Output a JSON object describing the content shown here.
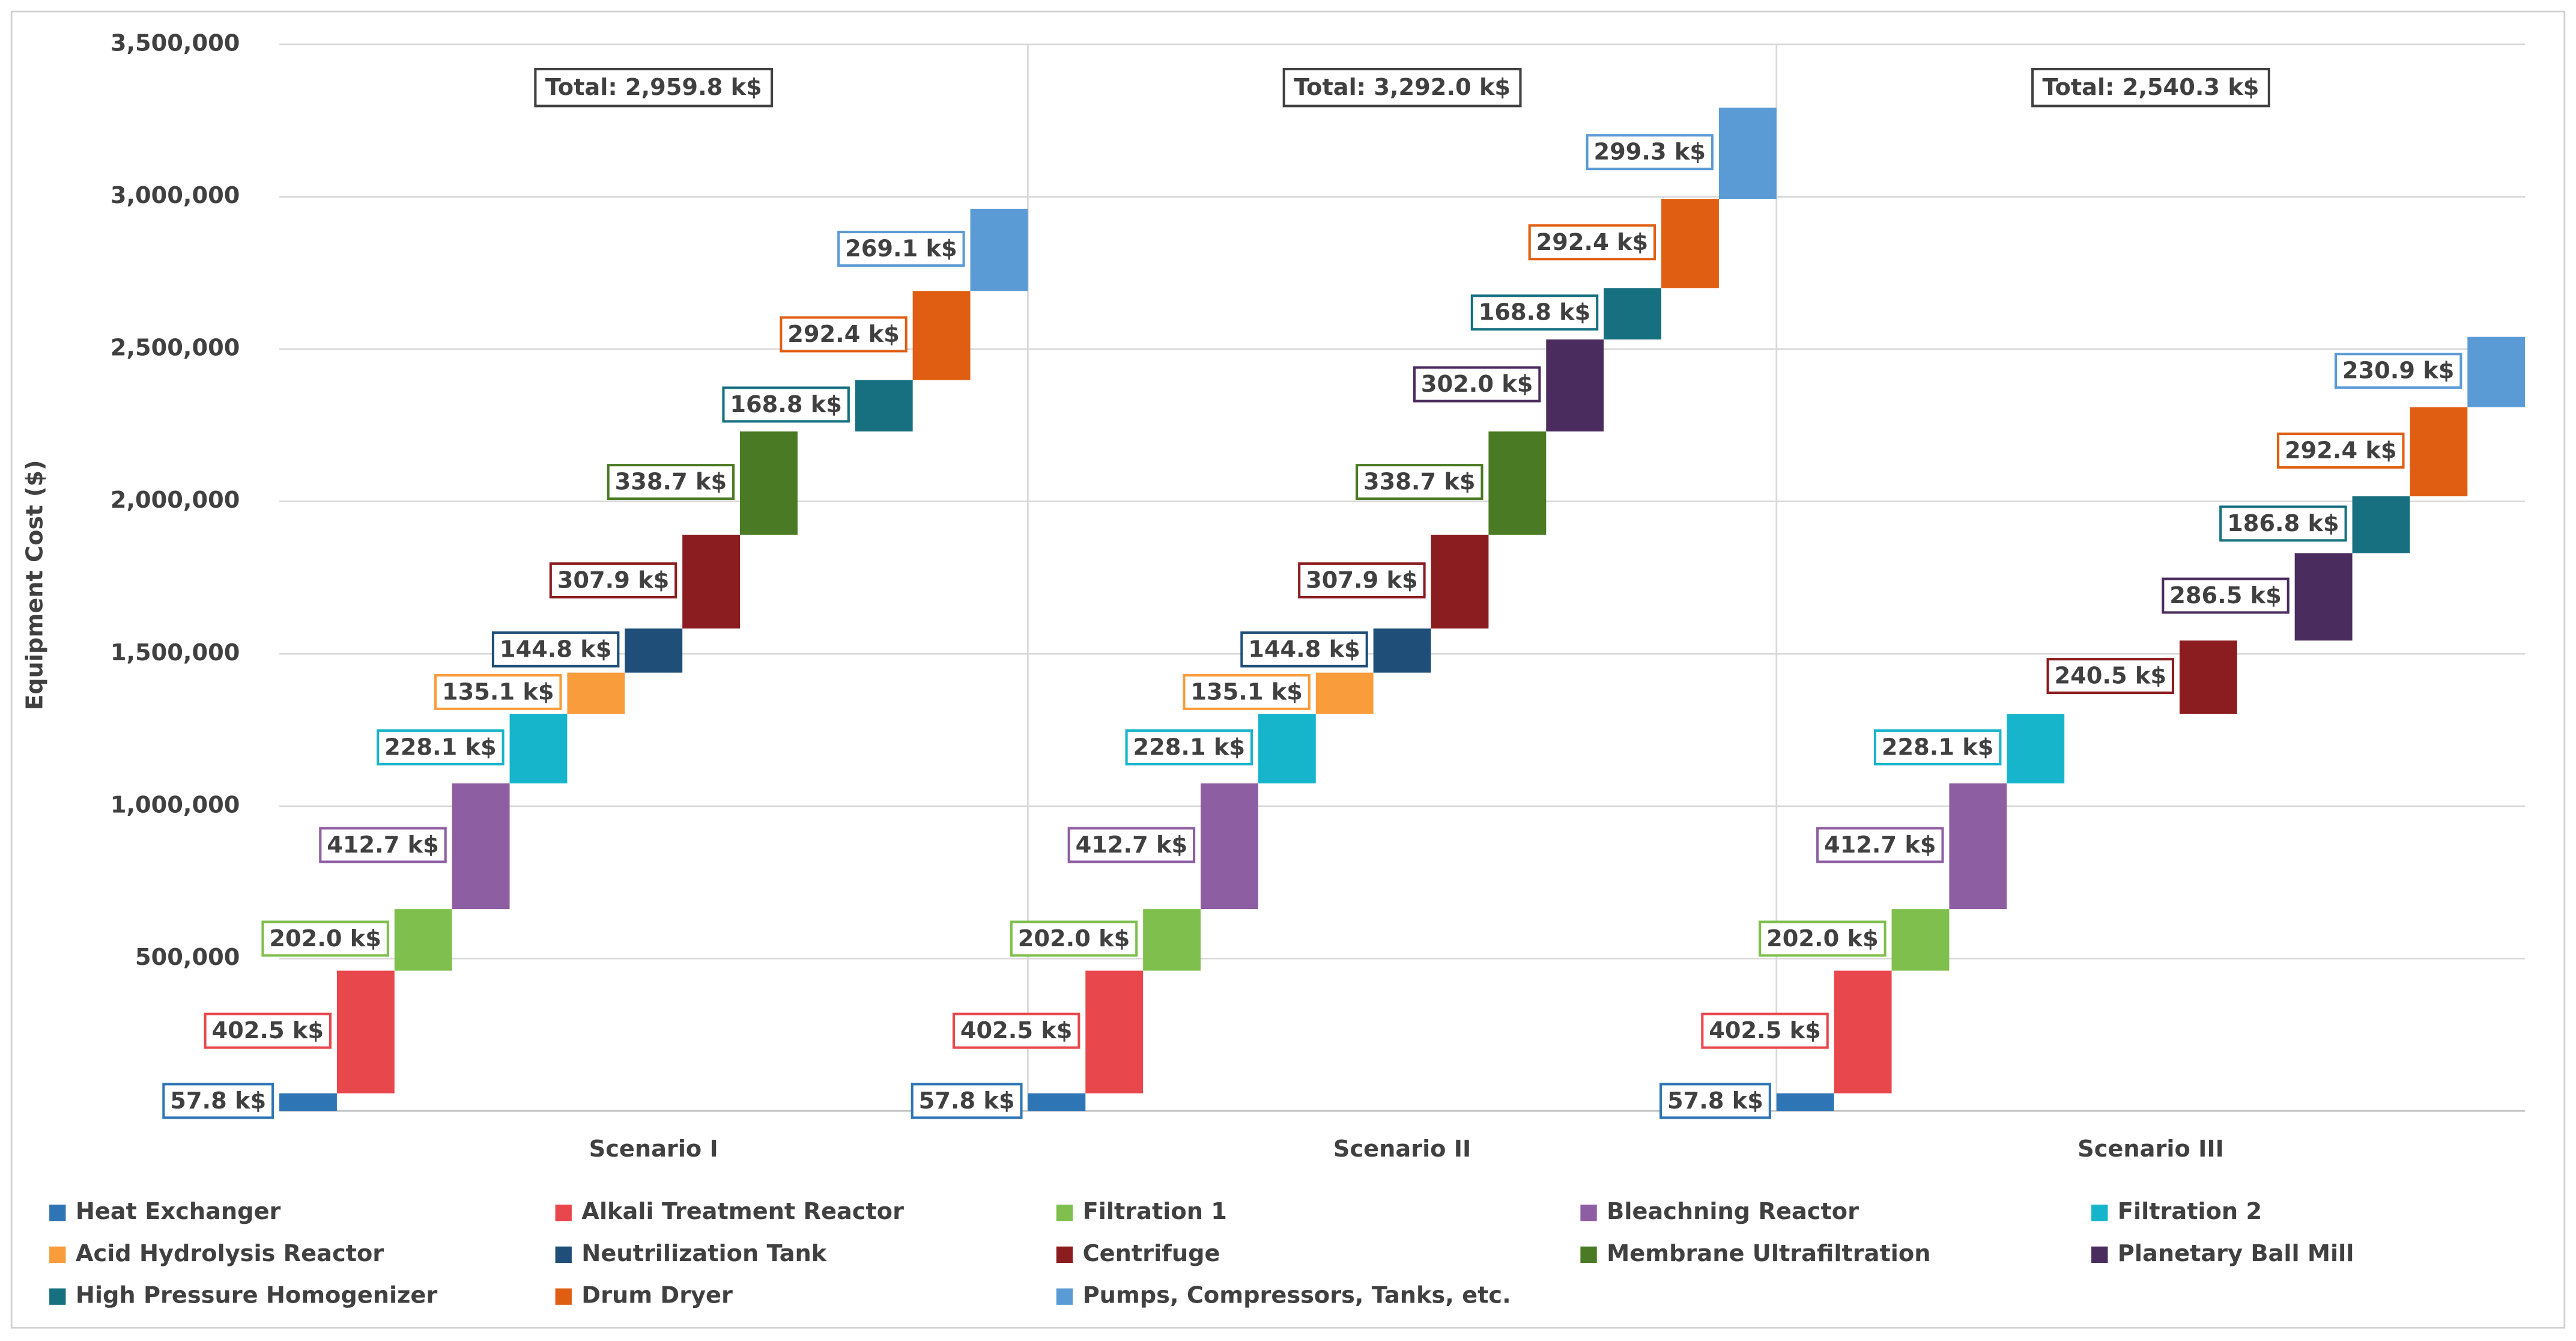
{
  "chart_data": {
    "type": "waterfall",
    "y_label": "Equipment Cost ($)",
    "categories": [
      "Scenario I",
      "Scenario II",
      "Scenario III"
    ],
    "totals": [
      "Total: 2,959.8 k$",
      "Total: 3,292.0 k$",
      "Total: 2,540.3 k$"
    ],
    "ylim": [
      0,
      3500000
    ],
    "yticks": [
      0,
      {
        "value": 500000,
        "label": "500,000"
      },
      {
        "value": 1000000,
        "label": "1,000,000"
      },
      {
        "value": 1500000,
        "label": "1,500,000"
      },
      {
        "value": 2000000,
        "label": "2,000,000"
      },
      {
        "value": 2500000,
        "label": "2,500,000"
      },
      {
        "value": 3000000,
        "label": "3,000,000"
      },
      {
        "value": 3500000,
        "label": "3,500,000"
      }
    ],
    "grid": true,
    "legend": "bottom",
    "series": [
      {
        "name": "Heat Exchanger",
        "color": "#2e75b6",
        "values": [
          57800,
          57800,
          57800
        ],
        "value_labels": [
          "57.8 k$",
          "57.8 k$",
          "57.8 k$"
        ]
      },
      {
        "name": "Alkali Treatment Reactor",
        "color": "#e8474c",
        "values": [
          402500,
          402500,
          402500
        ],
        "value_labels": [
          "402.5 k$",
          "402.5 k$",
          "402.5 k$"
        ]
      },
      {
        "name": "Filtration 1",
        "color": "#7fbf4d",
        "values": [
          202000,
          202000,
          202000
        ],
        "value_labels": [
          "202.0 k$",
          "202.0 k$",
          "202.0 k$"
        ]
      },
      {
        "name": "Bleachning Reactor",
        "color": "#8e5ea2",
        "values": [
          412700,
          412700,
          412700
        ],
        "value_labels": [
          "412.7 k$",
          "412.7 k$",
          "412.7 k$"
        ]
      },
      {
        "name": "Filtration 2",
        "color": "#17b5cb",
        "values": [
          228100,
          228100,
          228100
        ],
        "value_labels": [
          "228.1 k$",
          "228.1 k$",
          "228.1 k$"
        ]
      },
      {
        "name": "Acid Hydrolysis Reactor",
        "color": "#f89c3c",
        "values": [
          135100,
          135100,
          null
        ],
        "value_labels": [
          "135.1 k$",
          "135.1 k$",
          null
        ]
      },
      {
        "name": "Neutrilization Tank",
        "color": "#1f4e79",
        "values": [
          144800,
          144800,
          null
        ],
        "value_labels": [
          "144.8 k$",
          "144.8 k$",
          null
        ]
      },
      {
        "name": "Centrifuge",
        "color": "#8b1c1f",
        "values": [
          307900,
          307900,
          240500
        ],
        "value_labels": [
          "307.9 k$",
          "307.9 k$",
          "240.5 k$"
        ]
      },
      {
        "name": "Membrane Ultrafiltration",
        "color": "#4a7a23",
        "values": [
          338700,
          338700,
          null
        ],
        "value_labels": [
          "338.7 k$",
          "338.7 k$",
          null
        ]
      },
      {
        "name": "Planetary Ball Mill",
        "color": "#4b2c5e",
        "values": [
          null,
          302000,
          286500
        ],
        "value_labels": [
          null,
          "302.0 k$",
          "286.5 k$"
        ]
      },
      {
        "name": "High Pressure Homogenizer",
        "color": "#16707f",
        "values": [
          168800,
          168800,
          186800
        ],
        "value_labels": [
          "168.8 k$",
          "168.8 k$",
          "186.8 k$"
        ]
      },
      {
        "name": "Drum Dryer",
        "color": "#e05e12",
        "values": [
          292400,
          292400,
          292400
        ],
        "value_labels": [
          "292.4 k$",
          "292.4 k$",
          "292.4 k$"
        ]
      },
      {
        "name": "Pumps, Compressors, Tanks, etc.",
        "color": "#5b9bd5",
        "values": [
          269100,
          299300,
          230900
        ],
        "value_labels": [
          "269.1 k$",
          "299.3 k$",
          "230.9 k$"
        ]
      }
    ]
  }
}
